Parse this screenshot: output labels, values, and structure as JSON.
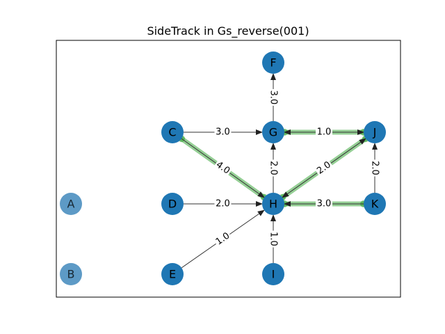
{
  "title": "SideTrack in Gs_reverse(001)",
  "colors": {
    "node": "#1f77b4",
    "node_faded": "#5d9ac6",
    "edge": "#333333",
    "highlight": "#2ca02c"
  },
  "nodes": [
    {
      "id": "A",
      "label": "A",
      "faded": true
    },
    {
      "id": "B",
      "label": "B",
      "faded": true
    },
    {
      "id": "C",
      "label": "C",
      "faded": false
    },
    {
      "id": "D",
      "label": "D",
      "faded": false
    },
    {
      "id": "E",
      "label": "E",
      "faded": false
    },
    {
      "id": "F",
      "label": "F",
      "faded": false
    },
    {
      "id": "G",
      "label": "G",
      "faded": false
    },
    {
      "id": "H",
      "label": "H",
      "faded": false
    },
    {
      "id": "I",
      "label": "I",
      "faded": false
    },
    {
      "id": "J",
      "label": "J",
      "faded": false
    },
    {
      "id": "K",
      "label": "K",
      "faded": false
    }
  ],
  "edges": [
    {
      "from": "G",
      "to": "F",
      "label": "3.0",
      "highlight": false,
      "bidirectional": false
    },
    {
      "from": "C",
      "to": "G",
      "label": "3.0",
      "highlight": false,
      "bidirectional": false
    },
    {
      "from": "G",
      "to": "J",
      "label": "1.0",
      "highlight": true,
      "bidirectional": true
    },
    {
      "from": "C",
      "to": "H",
      "label": "4.0",
      "highlight": true,
      "bidirectional": false
    },
    {
      "from": "H",
      "to": "G",
      "label": "2.0",
      "highlight": false,
      "bidirectional": false
    },
    {
      "from": "H",
      "to": "J",
      "label": "2.0",
      "highlight": true,
      "bidirectional": true
    },
    {
      "from": "K",
      "to": "J",
      "label": "2.0",
      "highlight": false,
      "bidirectional": false
    },
    {
      "from": "D",
      "to": "H",
      "label": "2.0",
      "highlight": false,
      "bidirectional": false
    },
    {
      "from": "K",
      "to": "H",
      "label": "3.0",
      "highlight": true,
      "bidirectional": false
    },
    {
      "from": "E",
      "to": "H",
      "label": "1.0",
      "highlight": false,
      "bidirectional": false
    },
    {
      "from": "I",
      "to": "H",
      "label": "1.0",
      "highlight": false,
      "bidirectional": false
    }
  ]
}
